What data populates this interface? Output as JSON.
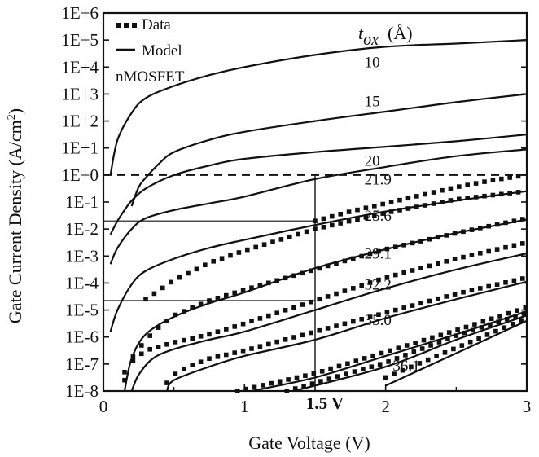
{
  "colors": {
    "ink": "#111111",
    "background": "#ffffff"
  },
  "chart_data": {
    "type": "line",
    "title": "",
    "xlabel": "Gate Voltage (V)",
    "ylabel": "Gate Current Density (A/cm²)",
    "ylabel_base": "Gate Current Density (A/cm",
    "ylabel_sup": "2",
    "ylabel_close": ")",
    "xlim": [
      0,
      3
    ],
    "ylim_exp": [
      -8,
      6
    ],
    "x_ticks": [
      {
        "value": 0,
        "label": "0"
      },
      {
        "value": 1,
        "label": "1"
      },
      {
        "value": 2,
        "label": "2"
      },
      {
        "value": 3,
        "label": "3"
      }
    ],
    "x_annotation": {
      "value": 1.5,
      "label": "1.5 V"
    },
    "y_ticks": [
      {
        "exp": 6,
        "label": "1E+6"
      },
      {
        "exp": 5,
        "label": "1E+5"
      },
      {
        "exp": 4,
        "label": "1E+4"
      },
      {
        "exp": 3,
        "label": "1E+3"
      },
      {
        "exp": 2,
        "label": "1E+2"
      },
      {
        "exp": 1,
        "label": "1E+1"
      },
      {
        "exp": 0,
        "label": "1E+0"
      },
      {
        "exp": -1,
        "label": "1E-1"
      },
      {
        "exp": -2,
        "label": "1E-2"
      },
      {
        "exp": -3,
        "label": "1E-3"
      },
      {
        "exp": -4,
        "label": "1E-4"
      },
      {
        "exp": -5,
        "label": "1E-5"
      },
      {
        "exp": -6,
        "label": "1E-6"
      },
      {
        "exp": -7,
        "label": "1E-7"
      },
      {
        "exp": -8,
        "label": "1E-8"
      }
    ],
    "legend": {
      "placement": "top-left",
      "data_label": "Data",
      "model_label": "Model",
      "device": "nMOSFET"
    },
    "series_heading": {
      "t": "t",
      "sub": "ox",
      "unit": "(Å)"
    },
    "reference_lines": {
      "horizontal_dashed_exp": 0,
      "vertical_x": 1.5,
      "horizontal_solid_exp": [
        -1.7,
        -4.65
      ]
    },
    "series": [
      {
        "name": "10",
        "label": "10",
        "has_data": false,
        "label_pos": {
          "x": 1.85,
          "exp": 4.0
        },
        "points": [
          [
            0.05,
            0.0
          ],
          [
            0.1,
            1.3
          ],
          [
            0.2,
            2.3
          ],
          [
            0.3,
            2.85
          ],
          [
            0.5,
            3.3
          ],
          [
            0.75,
            3.7
          ],
          [
            1.0,
            4.0
          ],
          [
            1.5,
            4.45
          ],
          [
            2.0,
            4.75
          ],
          [
            2.5,
            4.87
          ],
          [
            3.0,
            5.0
          ]
        ]
      },
      {
        "name": "15",
        "label": "15",
        "has_data": false,
        "label_pos": {
          "x": 1.85,
          "exp": 2.55
        },
        "points": [
          [
            0.2,
            -1.15
          ],
          [
            0.25,
            -0.45
          ],
          [
            0.3,
            -0.1
          ],
          [
            0.4,
            0.45
          ],
          [
            0.5,
            0.85
          ],
          [
            0.75,
            1.3
          ],
          [
            1.0,
            1.6
          ],
          [
            1.5,
            2.0
          ],
          [
            2.0,
            2.35
          ],
          [
            2.5,
            2.7
          ],
          [
            3.0,
            3.0
          ]
        ]
      },
      {
        "name": "20",
        "label": "20",
        "has_data": false,
        "label_pos": {
          "x": 1.85,
          "exp": 0.35
        },
        "points": [
          [
            0.05,
            -2.2
          ],
          [
            0.1,
            -1.7
          ],
          [
            0.15,
            -1.3
          ],
          [
            0.2,
            -0.95
          ],
          [
            0.3,
            -0.5
          ],
          [
            0.5,
            0.0
          ],
          [
            0.75,
            0.35
          ],
          [
            1.0,
            0.6
          ],
          [
            1.5,
            0.85
          ],
          [
            2.0,
            1.05
          ],
          [
            2.5,
            1.25
          ],
          [
            3.0,
            1.5
          ]
        ]
      },
      {
        "name": "21.9",
        "label": "21.9",
        "has_data": true,
        "label_pos": {
          "x": 1.85,
          "exp": -0.35
        },
        "points": [
          [
            0.05,
            -3.3
          ],
          [
            0.1,
            -2.7
          ],
          [
            0.2,
            -2.0
          ],
          [
            0.3,
            -1.6
          ],
          [
            0.5,
            -1.3
          ],
          [
            0.75,
            -1.05
          ],
          [
            1.0,
            -0.8
          ],
          [
            1.5,
            -0.15
          ],
          [
            2.0,
            0.3
          ],
          [
            2.5,
            0.7
          ],
          [
            3.0,
            0.95
          ]
        ],
        "data": [
          [
            1.5,
            -1.7
          ],
          [
            1.75,
            -1.35
          ],
          [
            2.0,
            -1.05
          ],
          [
            2.25,
            -0.75
          ],
          [
            2.5,
            -0.45
          ],
          [
            2.75,
            -0.2
          ],
          [
            3.0,
            0.0
          ]
        ]
      },
      {
        "name": "25.6",
        "label": "25.6",
        "has_data": true,
        "label_pos": {
          "x": 1.85,
          "exp": -1.7
        },
        "points": [
          [
            0.05,
            -5.8
          ],
          [
            0.1,
            -5.0
          ],
          [
            0.2,
            -4.05
          ],
          [
            0.3,
            -3.55
          ],
          [
            0.5,
            -3.1
          ],
          [
            0.75,
            -2.7
          ],
          [
            1.0,
            -2.4
          ],
          [
            1.5,
            -1.85
          ],
          [
            2.0,
            -1.35
          ],
          [
            2.5,
            -0.95
          ],
          [
            3.0,
            -0.6
          ]
        ],
        "data": [
          [
            0.3,
            -4.6
          ],
          [
            0.5,
            -3.9
          ],
          [
            0.75,
            -3.25
          ],
          [
            1.0,
            -2.8
          ],
          [
            1.5,
            -2.0
          ],
          [
            2.0,
            -1.4
          ],
          [
            2.5,
            -0.9
          ],
          [
            3.0,
            -0.6
          ]
        ]
      },
      {
        "name": "29.1",
        "label": "29.1",
        "has_data": true,
        "label_pos": {
          "x": 1.85,
          "exp": -3.1
        },
        "points": [
          [
            0.15,
            -8.0
          ],
          [
            0.2,
            -6.8
          ],
          [
            0.3,
            -5.9
          ],
          [
            0.5,
            -5.25
          ],
          [
            0.75,
            -4.75
          ],
          [
            1.0,
            -4.35
          ],
          [
            1.5,
            -3.45
          ],
          [
            2.0,
            -2.75
          ],
          [
            2.5,
            -2.15
          ],
          [
            3.0,
            -1.65
          ]
        ],
        "data": [
          [
            0.15,
            -7.6
          ],
          [
            0.2,
            -6.8
          ],
          [
            0.3,
            -6.1
          ],
          [
            0.4,
            -5.6
          ],
          [
            0.5,
            -5.2
          ],
          [
            0.75,
            -4.65
          ],
          [
            1.0,
            -4.25
          ],
          [
            1.5,
            -3.5
          ],
          [
            2.0,
            -2.75
          ],
          [
            2.5,
            -2.15
          ],
          [
            3.0,
            -1.6
          ]
        ]
      },
      {
        "name": "32.2",
        "label": "32.2",
        "has_data": true,
        "label_pos": {
          "x": 1.85,
          "exp": -4.25
        },
        "points": [
          [
            0.2,
            -8.0
          ],
          [
            0.25,
            -7.4
          ],
          [
            0.35,
            -6.8
          ],
          [
            0.5,
            -6.45
          ],
          [
            0.75,
            -6.1
          ],
          [
            1.0,
            -5.8
          ],
          [
            1.5,
            -5.0
          ],
          [
            2.0,
            -4.2
          ],
          [
            2.5,
            -3.5
          ],
          [
            3.0,
            -2.9
          ]
        ],
        "data": [
          [
            0.15,
            -7.3
          ],
          [
            0.2,
            -6.9
          ],
          [
            0.3,
            -6.5
          ],
          [
            0.5,
            -6.2
          ],
          [
            0.75,
            -5.9
          ],
          [
            1.0,
            -5.5
          ],
          [
            1.5,
            -4.65
          ],
          [
            2.0,
            -3.8
          ],
          [
            2.5,
            -3.1
          ],
          [
            3.0,
            -2.5
          ]
        ]
      },
      {
        "name": "35.0",
        "label": "35.0",
        "has_data": true,
        "label_pos": {
          "x": 1.85,
          "exp": -5.55
        },
        "points": [
          [
            0.45,
            -8.0
          ],
          [
            0.5,
            -7.6
          ],
          [
            0.75,
            -7.1
          ],
          [
            1.0,
            -6.7
          ],
          [
            1.5,
            -6.1
          ],
          [
            2.0,
            -5.3
          ],
          [
            2.5,
            -4.6
          ],
          [
            3.0,
            -3.95
          ]
        ],
        "data": [
          [
            0.45,
            -7.7
          ],
          [
            0.5,
            -7.4
          ],
          [
            0.6,
            -7.1
          ],
          [
            0.75,
            -6.8
          ],
          [
            1.0,
            -6.5
          ],
          [
            1.5,
            -5.8
          ],
          [
            2.0,
            -5.1
          ],
          [
            2.5,
            -4.4
          ],
          [
            3.0,
            -3.8
          ]
        ]
      },
      {
        "name": "36.1",
        "label": "36.1",
        "has_data": true,
        "label_pos": {
          "x": 2.05,
          "exp": -7.25
        },
        "points": [
          [
            1.05,
            -8.0
          ],
          [
            1.5,
            -7.5
          ],
          [
            2.0,
            -6.7
          ],
          [
            2.5,
            -5.9
          ],
          [
            3.0,
            -5.05
          ]
        ],
        "data": [
          [
            0.95,
            -8.0
          ],
          [
            1.5,
            -7.35
          ],
          [
            2.0,
            -6.55
          ],
          [
            2.5,
            -5.75
          ],
          [
            3.0,
            -4.9
          ]
        ]
      },
      {
        "name": "36.1-b",
        "label": "",
        "has_data": true,
        "label_pos": null,
        "points": [
          [
            1.35,
            -8.0
          ],
          [
            2.0,
            -7.1
          ],
          [
            2.5,
            -6.1
          ],
          [
            3.0,
            -5.2
          ]
        ],
        "data": [
          [
            1.3,
            -8.0
          ],
          [
            2.0,
            -6.95
          ],
          [
            2.5,
            -5.95
          ],
          [
            3.0,
            -5.1
          ]
        ]
      },
      {
        "name": "36.1-c",
        "label": "",
        "has_data": true,
        "label_pos": null,
        "points": [
          [
            2.0,
            -7.8
          ],
          [
            2.5,
            -6.6
          ],
          [
            3.0,
            -5.4
          ]
        ],
        "data": [
          [
            2.0,
            -7.5
          ],
          [
            2.5,
            -6.4
          ],
          [
            3.0,
            -5.3
          ]
        ]
      }
    ]
  }
}
